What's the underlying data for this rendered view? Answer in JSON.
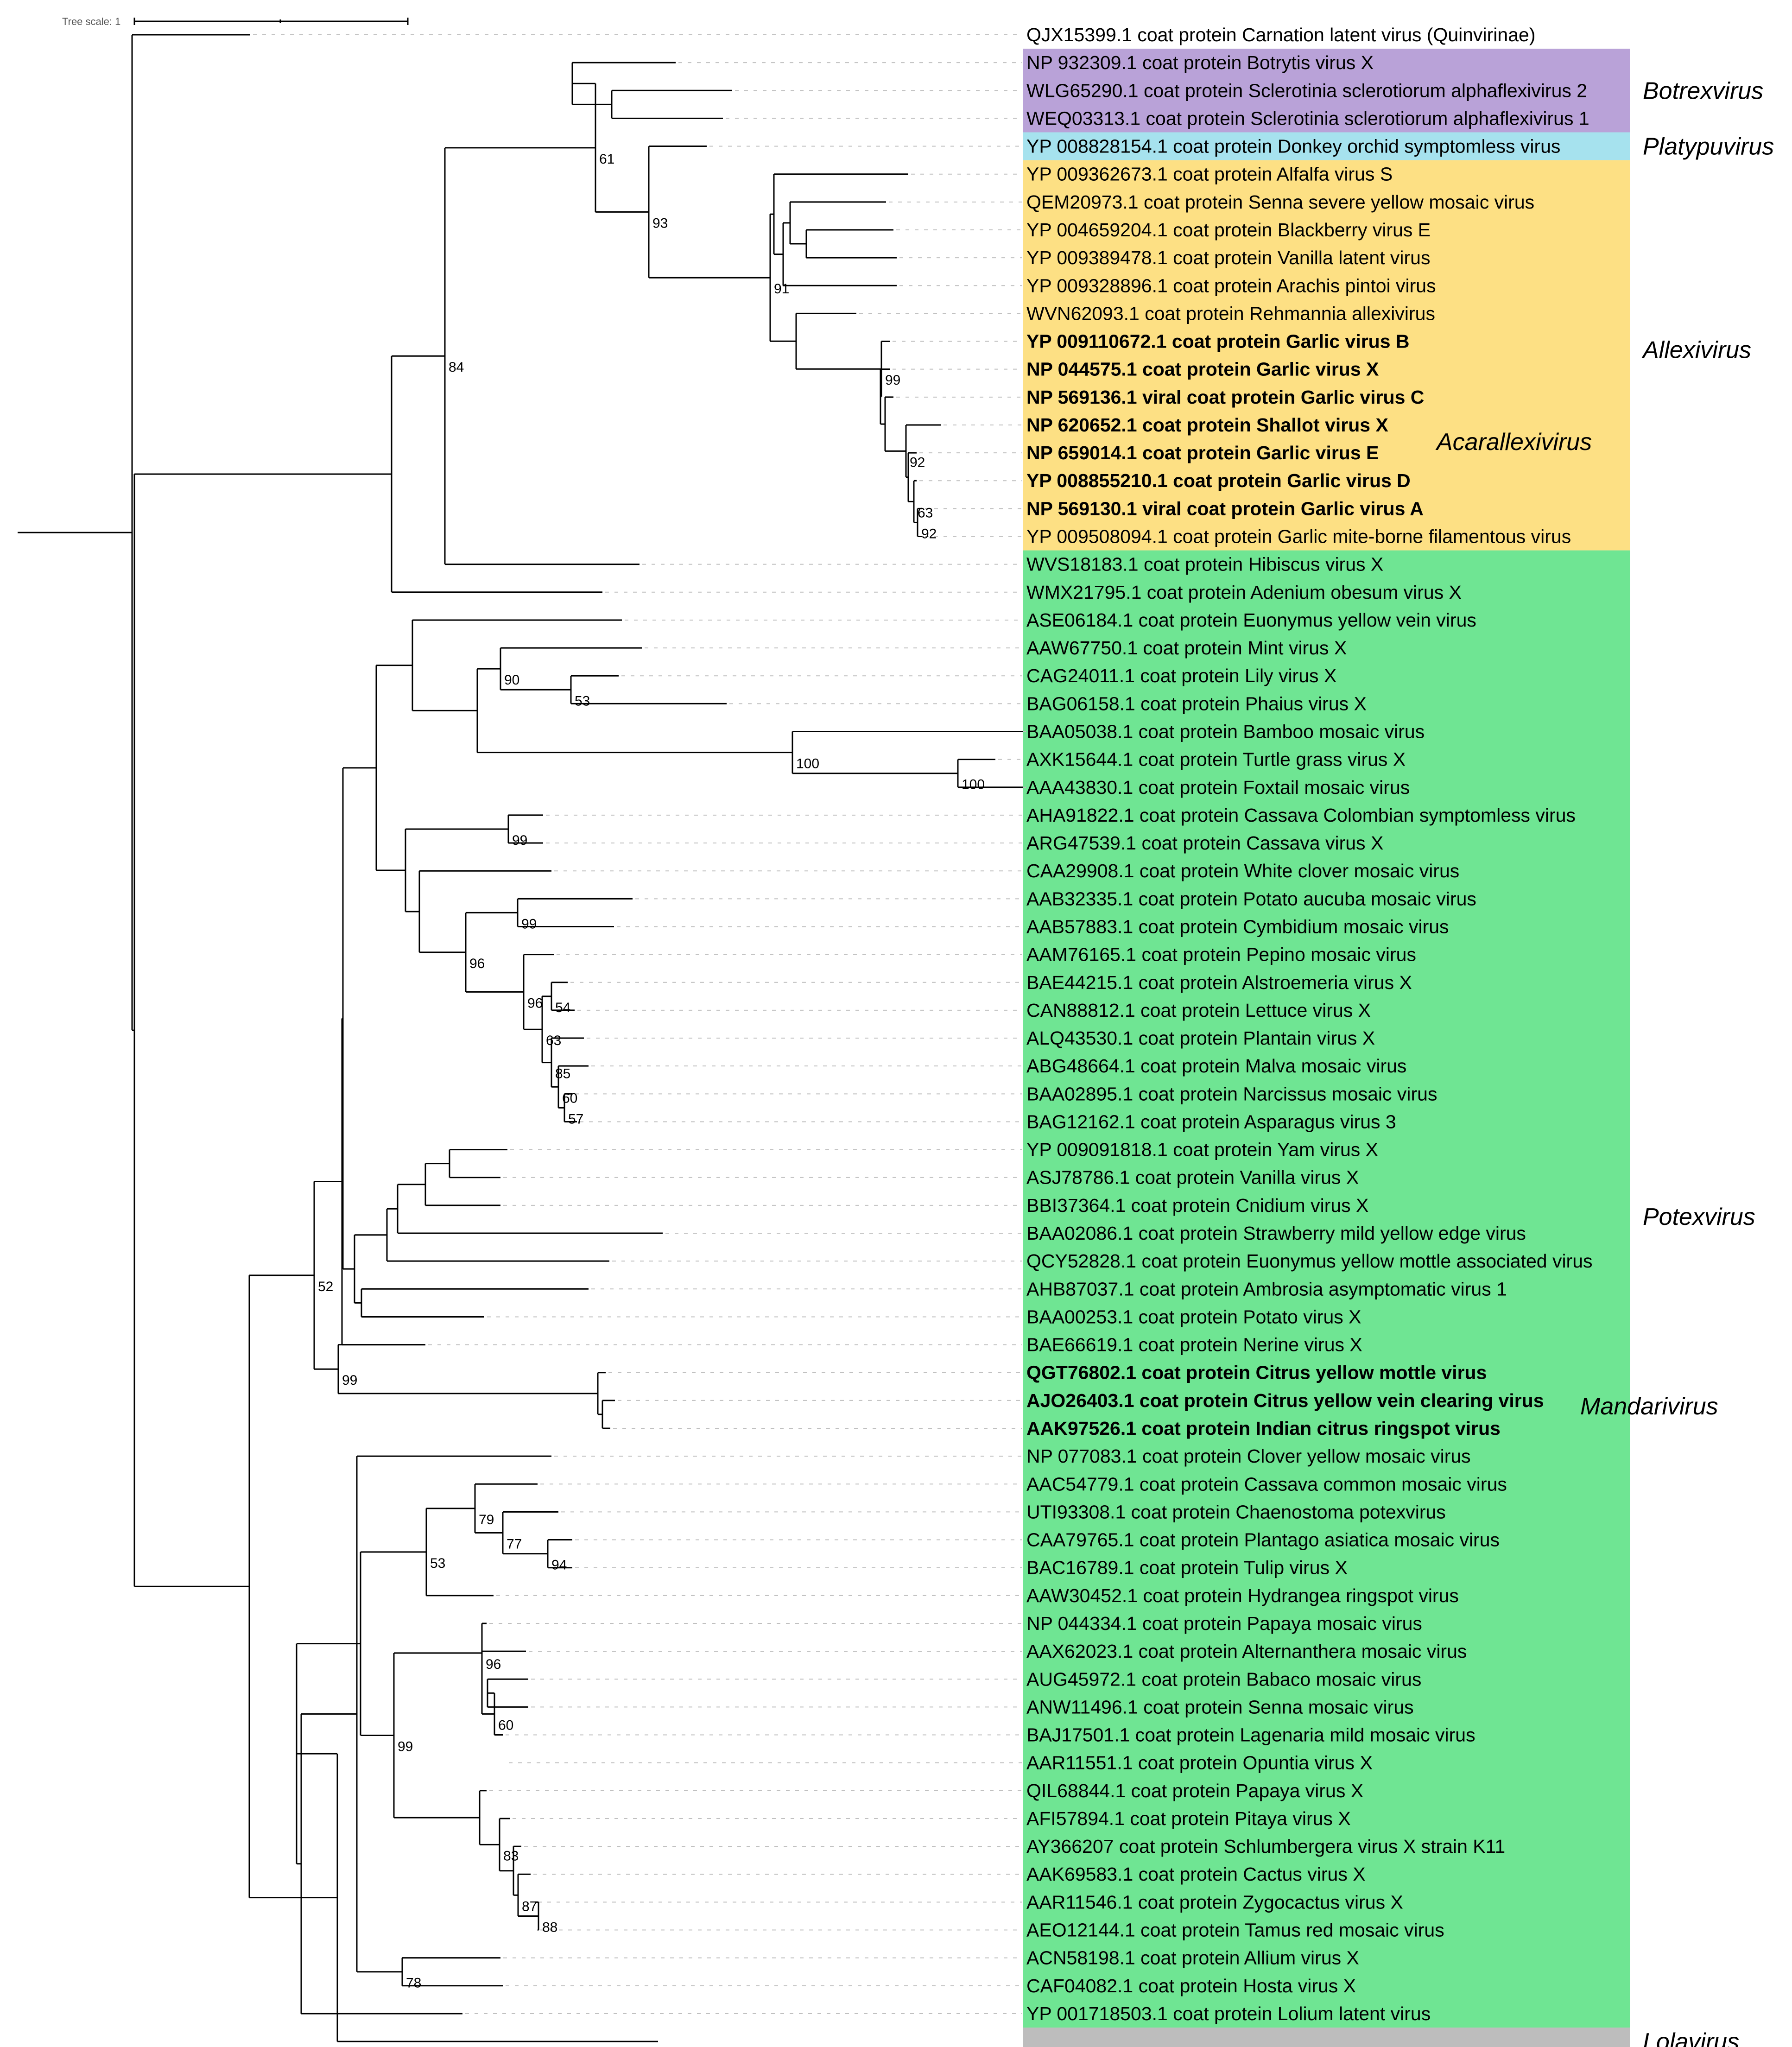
{
  "scale": {
    "label": "Tree scale: 1"
  },
  "colors": {
    "Botrexvirus": "#b9a2d8",
    "Platypuvirus": "#a6e2ee",
    "Allexivirus": "#fde084",
    "Potexvirus": "#6fe593",
    "Lolavirus": "#bdbdbd"
  },
  "genera": [
    {
      "name": "Botrexvirus",
      "first": 1,
      "last": 3
    },
    {
      "name": "Platypuvirus",
      "first": 4,
      "last": 4
    },
    {
      "name": "Allexivirus",
      "first": 5,
      "last": 18
    },
    {
      "name": "Potexvirus",
      "first": 19,
      "last": 71
    },
    {
      "name": "Lolavirus",
      "first": 72,
      "last": 72
    }
  ],
  "clade_labels": [
    {
      "name": "Botrexvirus",
      "row": 2
    },
    {
      "name": "Platypuvirus",
      "row": 4
    },
    {
      "name": "Allexivirus",
      "row": 11.3
    },
    {
      "name": "Acarallexivirus",
      "row": 14.6
    },
    {
      "name": "Potexvirus",
      "row": 42.4
    },
    {
      "name": "Mandarivirus",
      "row": 49.2
    },
    {
      "name": "Lolavirus",
      "row": 72
    }
  ],
  "taxa": [
    {
      "label": "QJX15399.1 coat protein Carnation latent virus (Quinvirinae)",
      "bold": false
    },
    {
      "label": "NP 932309.1 coat protein Botrytis virus X",
      "bold": false
    },
    {
      "label": "WLG65290.1 coat protein Sclerotinia sclerotiorum alphaflexivirus 2",
      "bold": false
    },
    {
      "label": "WEQ03313.1 coat protein Sclerotinia sclerotiorum alphaflexivirus 1",
      "bold": false
    },
    {
      "label": "YP 008828154.1 coat protein Donkey orchid symptomless virus",
      "bold": false
    },
    {
      "label": "YP 009362673.1 coat protein Alfalfa virus S",
      "bold": false
    },
    {
      "label": "QEM20973.1 coat protein Senna severe yellow mosaic virus",
      "bold": false
    },
    {
      "label": "YP 004659204.1 coat protein Blackberry virus E",
      "bold": false
    },
    {
      "label": "YP 009389478.1 coat protein Vanilla latent virus",
      "bold": false
    },
    {
      "label": "YP 009328896.1 coat protein Arachis pintoi virus",
      "bold": false
    },
    {
      "label": "WVN62093.1 coat protein Rehmannia allexivirus",
      "bold": false
    },
    {
      "label": "YP 009110672.1 coat protein Garlic virus B",
      "bold": true
    },
    {
      "label": "NP 044575.1 coat protein Garlic virus X",
      "bold": true
    },
    {
      "label": "NP 569136.1 viral coat protein Garlic virus C",
      "bold": true
    },
    {
      "label": "NP 620652.1 coat protein Shallot virus X",
      "bold": true
    },
    {
      "label": "NP 659014.1 coat protein Garlic virus E",
      "bold": true
    },
    {
      "label": "YP 008855210.1 coat protein Garlic virus D",
      "bold": true
    },
    {
      "label": "NP 569130.1 viral coat protein Garlic virus A",
      "bold": true
    },
    {
      "label": "YP 009508094.1 coat protein Garlic mite-borne filamentous virus",
      "bold": false
    },
    {
      "label": "WVS18183.1 coat protein Hibiscus virus X",
      "bold": false
    },
    {
      "label": "WMX21795.1 coat protein Adenium obesum virus X",
      "bold": false
    },
    {
      "label": "ASE06184.1 coat protein Euonymus yellow vein virus",
      "bold": false
    },
    {
      "label": "AAW67750.1 coat protein Mint virus X",
      "bold": false
    },
    {
      "label": "CAG24011.1 coat protein Lily virus X",
      "bold": false
    },
    {
      "label": "BAG06158.1 coat protein Phaius virus X",
      "bold": false
    },
    {
      "label": "BAA05038.1 coat protein Bamboo mosaic virus",
      "bold": false
    },
    {
      "label": "AXK15644.1 coat protein Turtle grass virus X",
      "bold": false
    },
    {
      "label": "AAA43830.1 coat protein Foxtail mosaic virus",
      "bold": false
    },
    {
      "label": "AHA91822.1 coat protein Cassava Colombian symptomless virus",
      "bold": false
    },
    {
      "label": "ARG47539.1 coat protein Cassava virus X",
      "bold": false
    },
    {
      "label": "CAA29908.1 coat protein White clover mosaic virus",
      "bold": false
    },
    {
      "label": "AAB32335.1 coat protein Potato aucuba mosaic virus",
      "bold": false
    },
    {
      "label": "AAB57883.1 coat protein Cymbidium mosaic virus",
      "bold": false
    },
    {
      "label": "AAM76165.1 coat protein Pepino mosaic virus",
      "bold": false
    },
    {
      "label": "BAE44215.1 coat protein Alstroemeria virus X",
      "bold": false
    },
    {
      "label": "CAN88812.1 coat protein Lettuce virus X",
      "bold": false
    },
    {
      "label": "ALQ43530.1 coat protein Plantain virus X",
      "bold": false
    },
    {
      "label": "ABG48664.1 coat protein Malva mosaic virus",
      "bold": false
    },
    {
      "label": "BAA02895.1 coat protein Narcissus mosaic virus",
      "bold": false
    },
    {
      "label": "BAG12162.1 coat protein Asparagus virus 3",
      "bold": false
    },
    {
      "label": "YP 009091818.1 coat protein Yam virus X",
      "bold": false
    },
    {
      "label": "ASJ78786.1 coat protein Vanilla virus X",
      "bold": false
    },
    {
      "label": "BBI37364.1 coat protein Cnidium virus X",
      "bold": false
    },
    {
      "label": "BAA02086.1 coat protein Strawberry mild yellow edge virus",
      "bold": false
    },
    {
      "label": "QCY52828.1 coat protein Euonymus yellow mottle associated virus",
      "bold": false
    },
    {
      "label": "AHB87037.1 coat protein Ambrosia asymptomatic virus 1",
      "bold": false
    },
    {
      "label": "BAA00253.1 coat protein Potato virus X",
      "bold": false
    },
    {
      "label": "BAE66619.1 coat protein Nerine virus X",
      "bold": false
    },
    {
      "label": "QGT76802.1 coat protein Citrus yellow mottle virus",
      "bold": true
    },
    {
      "label": "AJO26403.1 coat protein Citrus yellow vein clearing virus",
      "bold": true
    },
    {
      "label": "AAK97526.1 coat protein Indian citrus ringspot virus",
      "bold": true
    },
    {
      "label": "NP 077083.1 coat protein Clover yellow mosaic virus",
      "bold": false
    },
    {
      "label": "AAC54779.1 coat protein Cassava common mosaic virus",
      "bold": false
    },
    {
      "label": "UTI93308.1 coat protein Chaenostoma potexvirus",
      "bold": false
    },
    {
      "label": "CAA79765.1 coat protein Plantago asiatica mosaic virus",
      "bold": false
    },
    {
      "label": "BAC16789.1 coat protein Tulip virus X",
      "bold": false
    },
    {
      "label": "AAW30452.1 coat protein Hydrangea ringspot virus",
      "bold": false
    },
    {
      "label": "NP 044334.1 coat protein Papaya mosaic virus",
      "bold": false
    },
    {
      "label": "AAX62023.1 coat protein Alternanthera mosaic virus",
      "bold": false
    },
    {
      "label": "AUG45972.1 coat protein Babaco mosaic virus",
      "bold": false
    },
    {
      "label": "ANW11496.1 coat protein Senna mosaic virus",
      "bold": false
    },
    {
      "label": "BAJ17501.1 coat protein Lagenaria mild mosaic virus",
      "bold": false
    },
    {
      "label": "AAR11551.1 coat protein Opuntia virus X",
      "bold": false
    },
    {
      "label": "QIL68844.1 coat protein Papaya virus X",
      "bold": false
    },
    {
      "label": "AFI57894.1 coat protein Pitaya virus X",
      "bold": false
    },
    {
      "label": "AY366207 coat protein Schlumbergera virus X strain K11",
      "bold": false
    },
    {
      "label": "AAK69583.1 coat protein Cactus virus X",
      "bold": false
    },
    {
      "label": "AAR11546.1 coat protein Zygocactus virus X",
      "bold": false
    },
    {
      "label": "AEO12144.1 coat protein Tamus red mosaic virus",
      "bold": false
    },
    {
      "label": "ACN58198.1 coat protein Allium virus X",
      "bold": false
    },
    {
      "label": "CAF04082.1 coat protein Hosta virus X",
      "bold": false
    },
    {
      "label": "YP 001718503.1 coat protein Lolium latent virus",
      "bold": false
    }
  ],
  "tips": [
    [
      "Q",
      540
    ],
    [
      "B1",
      1458
    ],
    [
      "B2",
      1580
    ],
    [
      "B3",
      1560
    ],
    [
      "P",
      1525
    ],
    [
      "A1",
      1960
    ],
    [
      "A2",
      1912
    ],
    [
      "A3",
      1928
    ],
    [
      "A4",
      1935
    ],
    [
      "A5",
      1935
    ],
    [
      "A6",
      1848
    ],
    [
      "A7",
      1920
    ],
    [
      "A8",
      1920
    ],
    [
      "A9",
      1928
    ],
    [
      "A10",
      2030
    ],
    [
      "A11",
      1978
    ],
    [
      "A12",
      1978
    ],
    [
      "A13",
      1990
    ],
    [
      "A14",
      1990
    ],
    [
      "R19",
      1380
    ],
    [
      "R20",
      1300
    ],
    [
      "R21",
      1342
    ],
    [
      "R22",
      1385
    ],
    [
      "R23",
      1335
    ],
    [
      "R24",
      1568
    ],
    [
      "R25",
      2208
    ],
    [
      "R26",
      2148
    ],
    [
      "R27",
      2208
    ],
    [
      "R28",
      1172
    ],
    [
      "R29",
      1172
    ],
    [
      "R30",
      1190
    ],
    [
      "R31",
      1365
    ],
    [
      "R32",
      1325
    ],
    [
      "R33",
      1195
    ],
    [
      "R34",
      1225
    ],
    [
      "R35",
      1240
    ],
    [
      "R36",
      1260
    ],
    [
      "R37",
      1270
    ],
    [
      "R38",
      1235
    ],
    [
      "R39",
      1245
    ],
    [
      "R40",
      1095
    ],
    [
      "R41",
      1080
    ],
    [
      "R42",
      1080
    ],
    [
      "R43",
      1430
    ],
    [
      "R44",
      1315
    ],
    [
      "R45",
      1270
    ],
    [
      "R46",
      1045
    ],
    [
      "R47",
      918
    ],
    [
      "M1",
      1307
    ],
    [
      "M2",
      1327
    ],
    [
      "M3",
      1317
    ],
    [
      "R51",
      1190
    ],
    [
      "R52",
      1160
    ],
    [
      "R53",
      1205
    ],
    [
      "R54",
      1235
    ],
    [
      "R55",
      1235
    ],
    [
      "R56",
      1065
    ],
    [
      "R57",
      1050
    ],
    [
      "R58",
      1135
    ],
    [
      "R59",
      1140
    ],
    [
      "R60",
      1140
    ],
    [
      "R61",
      1085
    ],
    [
      "R62",
      1092
    ],
    [
      "R63",
      1050
    ],
    [
      "R64",
      1100
    ],
    [
      "R65",
      1125
    ],
    [
      "R66",
      1145
    ],
    [
      "R67",
      1155
    ],
    [
      "R68",
      1160
    ],
    [
      "R69",
      1080
    ],
    [
      "R70",
      1085
    ],
    [
      "R71",
      998
    ],
    [
      "L",
      1420
    ]
  ],
  "nodes": [
    [
      "nB23",
      1320,
      [
        "B2",
        "B3"
      ],
      ""
    ],
    [
      "nBot",
      1235,
      [
        "B1",
        "nB23"
      ],
      ""
    ],
    [
      "nA34",
      1740,
      [
        "A3",
        "A4"
      ],
      ""
    ],
    [
      "nA24",
      1705,
      [
        "A2",
        "nA34"
      ],
      ""
    ],
    [
      "nA25",
      1690,
      [
        "nA24",
        "A5"
      ],
      ""
    ],
    [
      "nA15",
      1670,
      [
        "A1",
        "nA25"
      ],
      ""
    ],
    [
      "nA1314",
      1980,
      [
        "A13",
        "A14"
      ],
      "92"
    ],
    [
      "nA1214",
      1972,
      [
        "A12",
        "nA1314"
      ],
      "63"
    ],
    [
      "nA1114",
      1960,
      [
        "A11",
        "nA1214"
      ],
      ""
    ],
    [
      "nA1014",
      1955,
      [
        "A10",
        "nA1114"
      ],
      "92"
    ],
    [
      "nA914",
      1910,
      [
        "A9",
        "nA1014"
      ],
      ""
    ],
    [
      "nA814",
      1900,
      [
        "A8",
        "nA914"
      ],
      ""
    ],
    [
      "nA714",
      1902,
      [
        "A7",
        "nA814"
      ],
      "99"
    ],
    [
      "nA614",
      1718,
      [
        "A6",
        "nA714"
      ],
      ""
    ],
    [
      "nA",
      1662,
      [
        "nA15",
        "nA614"
      ],
      "91"
    ],
    [
      "nPA",
      1400,
      [
        "P",
        "nA"
      ],
      "93"
    ],
    [
      "nBPA",
      1285,
      [
        "nBot",
        "nPA"
      ],
      "61"
    ],
    [
      "nBPA2",
      960,
      [
        "nBPA",
        "R19"
      ],
      "84"
    ],
    [
      "nUp",
      845,
      [
        "nBPA2",
        "R20"
      ],
      ""
    ],
    [
      "n2324",
      1232,
      [
        "R23",
        "R24"
      ],
      "53"
    ],
    [
      "n2224",
      1080,
      [
        "R22",
        "n2324"
      ],
      "90"
    ],
    [
      "n2627",
      2067,
      [
        "R26",
        "R27"
      ],
      "100"
    ],
    [
      "n2527",
      1710,
      [
        "R25",
        "n2627"
      ],
      "100"
    ],
    [
      "n2227",
      1030,
      [
        "n2224",
        "n2527"
      ],
      ""
    ],
    [
      "n2127",
      890,
      [
        "R21",
        "n2227"
      ],
      ""
    ],
    [
      "n2829",
      1097,
      [
        "R28",
        "R29"
      ],
      "99"
    ],
    [
      "n3132",
      1117,
      [
        "R31",
        "R32"
      ],
      "99"
    ],
    [
      "n3839",
      1218,
      [
        "R38",
        "R39"
      ],
      "57"
    ],
    [
      "n3739",
      1205,
      [
        "R37",
        "n3839"
      ],
      "60"
    ],
    [
      "n3639",
      1190,
      [
        "R36",
        "n3739"
      ],
      "85"
    ],
    [
      "n3435",
      1190,
      [
        "R34",
        "R35"
      ],
      "54"
    ],
    [
      "n3439",
      1170,
      [
        "n3435",
        "n3639"
      ],
      "63"
    ],
    [
      "n3339",
      1130,
      [
        "R33",
        "n3439"
      ],
      "96"
    ],
    [
      "n3139",
      1005,
      [
        "n3132",
        "n3339"
      ],
      "96"
    ],
    [
      "n3039",
      905,
      [
        "R30",
        "n3139"
      ],
      ""
    ],
    [
      "n2839",
      875,
      [
        "n2829",
        "n3039"
      ],
      ""
    ],
    [
      "n2139",
      812,
      [
        "n2127",
        "n2839"
      ],
      ""
    ],
    [
      "n4041",
      970,
      [
        "R40",
        "R41"
      ],
      ""
    ],
    [
      "n4042",
      918,
      [
        "n4041",
        "R42"
      ],
      ""
    ],
    [
      "n4043",
      858,
      [
        "n4042",
        "R43"
      ],
      ""
    ],
    [
      "n4044",
      835,
      [
        "n4043",
        "R44"
      ],
      ""
    ],
    [
      "n4546",
      780,
      [
        "R45",
        "R46"
      ],
      ""
    ],
    [
      "n4046",
      765,
      [
        "n4044",
        "n4546"
      ],
      ""
    ],
    [
      "n2146",
      740,
      [
        "n2139",
        "n4046"
      ],
      ""
    ],
    [
      "n2147",
      738,
      [
        "n2146",
        "R47"
      ],
      ""
    ],
    [
      "nM23",
      1300,
      [
        "M2",
        "M3"
      ],
      ""
    ],
    [
      "nM",
      1290,
      [
        "M1",
        "nM23"
      ],
      ""
    ],
    [
      "n4748",
      730,
      [
        "R47",
        "nM"
      ],
      "99"
    ],
    [
      "nPotA",
      678,
      [
        "n2147",
        "n4748"
      ],
      "52"
    ],
    [
      "n5455",
      1182,
      [
        "R54",
        "R55"
      ],
      "94"
    ],
    [
      "n5355",
      1085,
      [
        "R53",
        "n5455"
      ],
      "77"
    ],
    [
      "n5255",
      1025,
      [
        "R52",
        "n5355"
      ],
      "79"
    ],
    [
      "n5256",
      920,
      [
        "n5255",
        "R56"
      ],
      "53"
    ],
    [
      "n5960",
      1052,
      [
        "R59",
        "R60"
      ],
      ""
    ],
    [
      "n6061",
      1067,
      [
        "n5960",
        "R61"
      ],
      "60"
    ],
    [
      "n5861",
      1040,
      [
        "R58",
        "n6061"
      ],
      ""
    ],
    [
      "n5761",
      1040,
      [
        "R57",
        "n5861"
      ],
      "96"
    ],
    [
      "n6768",
      1162,
      [
        "R67",
        "R68"
      ],
      "88"
    ],
    [
      "n6668",
      1118,
      [
        "R66",
        "n6768"
      ],
      "87"
    ],
    [
      "n6568",
      1108,
      [
        "R65",
        "n6668"
      ],
      ""
    ],
    [
      "n6468",
      1078,
      [
        "R64",
        "n6568"
      ],
      "83"
    ],
    [
      "n6368",
      1035,
      [
        "R63",
        "n6468"
      ],
      ""
    ],
    [
      "n5768",
      850,
      [
        "n5761",
        "n6368"
      ],
      "99"
    ],
    [
      "n5668",
      778,
      [
        "n5256",
        "n5768"
      ],
      ""
    ],
    [
      "n6970",
      868,
      [
        "R69",
        "R70"
      ],
      "78"
    ],
    [
      "n5170",
      770,
      [
        "R51",
        "n6970"
      ],
      ""
    ],
    [
      "n5171",
      650,
      [
        "n5170",
        "R71"
      ],
      ""
    ],
    [
      "nPotB",
      640,
      [
        "n5171",
        "n5668"
      ],
      ""
    ],
    [
      "nLol",
      728,
      [
        "nPotB",
        "L"
      ],
      ""
    ],
    [
      "nPot",
      538,
      [
        "nPotA",
        "nLol"
      ],
      ""
    ],
    [
      "nIng",
      290,
      [
        "nUp",
        "nPot"
      ],
      ""
    ],
    [
      "root",
      285,
      [
        "Q",
        "nIng"
      ],
      ""
    ]
  ]
}
